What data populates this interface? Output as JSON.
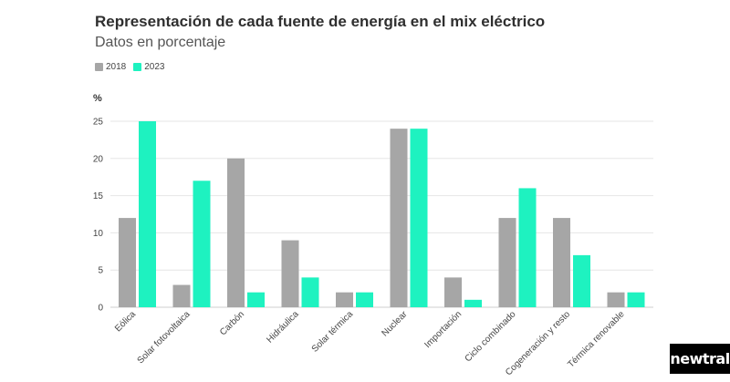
{
  "chart_data": {
    "type": "bar",
    "title": "Representación de cada fuente de energía en el mix eléctrico",
    "subtitle": "Datos en porcentaje",
    "ylabel": "%",
    "xlabel": "",
    "ylim": [
      0,
      25
    ],
    "yticks": [
      0,
      5,
      10,
      15,
      20,
      25
    ],
    "categories": [
      "Eólica",
      "Solar fotovoltaica",
      "Carbón",
      "Hidráulica",
      "Solar térmica",
      "Nuclear",
      "Importación",
      "Ciclo combinado",
      "Cogeneración y resto",
      "Térmica renovable"
    ],
    "series": [
      {
        "name": "2018",
        "color": "#a6a6a6",
        "values": [
          12,
          3,
          20,
          9,
          2,
          24,
          4,
          12,
          12,
          2
        ]
      },
      {
        "name": "2023",
        "color": "#1ef2c0",
        "values": [
          25,
          17,
          2,
          4,
          2,
          24,
          1,
          16,
          7,
          2
        ]
      }
    ],
    "legend": "top-left",
    "grid": true
  },
  "brand": {
    "logo_text": "newtral"
  }
}
